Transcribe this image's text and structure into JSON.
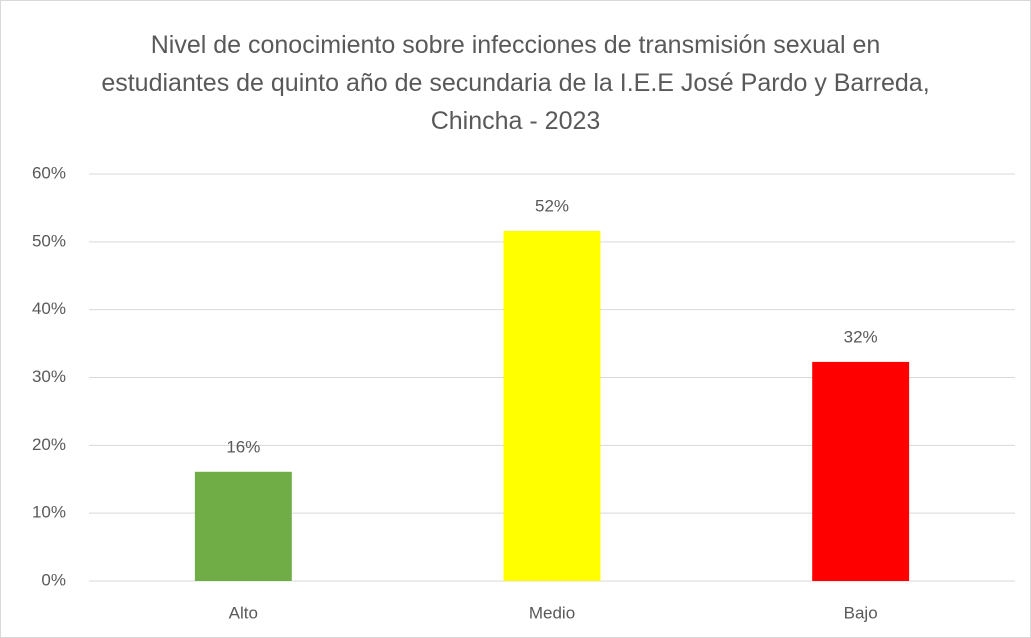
{
  "chart_data": {
    "type": "bar",
    "title": "Nivel de conocimiento sobre infecciones de transmisión sexual en estudiantes de quinto año de secundaria de la I.E.E José Pardo y Barreda, Chincha - 2023",
    "categories": [
      "Alto",
      "Medio",
      "Bajo"
    ],
    "values": [
      16.1,
      51.6,
      32.3
    ],
    "value_labels": [
      "16%",
      "52%",
      "32%"
    ],
    "colors": [
      "#70ad47",
      "#ffff00",
      "#ff0000"
    ],
    "ylim": [
      0,
      60
    ],
    "yticks": [
      {
        "value": 0,
        "label": "0%"
      },
      {
        "value": 10,
        "label": "10%"
      },
      {
        "value": 20,
        "label": "20%"
      },
      {
        "value": 30,
        "label": "30%"
      },
      {
        "value": 40,
        "label": "40%"
      },
      {
        "value": 50,
        "label": "50%"
      },
      {
        "value": 60,
        "label": "60%"
      }
    ],
    "grid": true
  }
}
